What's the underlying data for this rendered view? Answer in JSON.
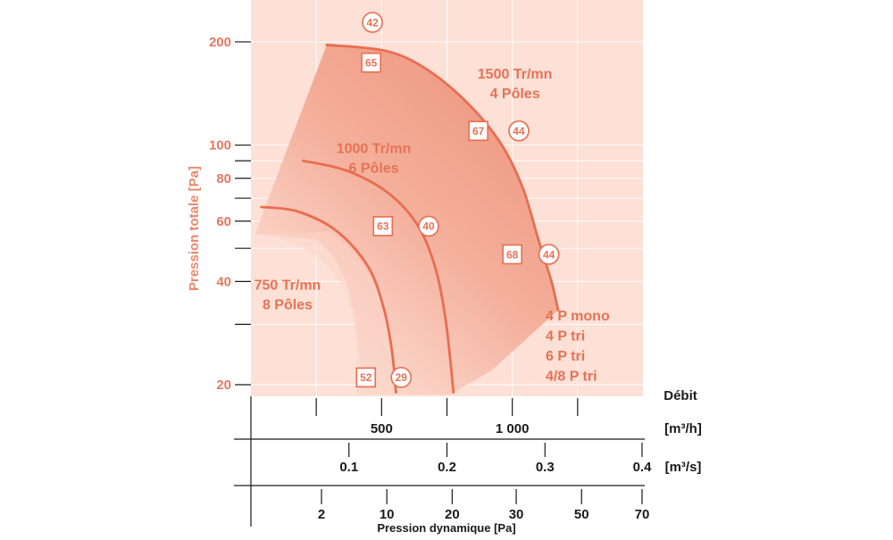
{
  "chart_data": {
    "type": "line",
    "ylabel": "Pression totale [Pa]",
    "xlabel": "Pression dynamique [Pa]",
    "y_scale": "log",
    "ylim": [
      18.5,
      265
    ],
    "y_ticks": [
      {
        "value": 20,
        "label": "20"
      },
      {
        "value": 30,
        "label": ""
      },
      {
        "value": 40,
        "label": "40"
      },
      {
        "value": 50,
        "label": ""
      },
      {
        "value": 60,
        "label": "60"
      },
      {
        "value": 70,
        "label": ""
      },
      {
        "value": 80,
        "label": "80"
      },
      {
        "value": 90,
        "label": ""
      },
      {
        "value": 100,
        "label": "100"
      },
      {
        "value": 200,
        "label": "200"
      }
    ],
    "x_axes": {
      "title": "Débit",
      "flow_m3h": {
        "unit": "[m³/h]",
        "xlim": [
          0,
          1500
        ],
        "ticks": [
          {
            "value": 250,
            "label": ""
          },
          {
            "value": 500,
            "label": "500"
          },
          {
            "value": 750,
            "label": ""
          },
          {
            "value": 1000,
            "label": "1 000"
          },
          {
            "value": 1250,
            "label": ""
          }
        ]
      },
      "flow_m3s": {
        "unit": "[m³/s]",
        "xlim": [
          0,
          0.4
        ],
        "ticks": [
          {
            "value": 0.1,
            "label": "0.1"
          },
          {
            "value": 0.2,
            "label": "0.2"
          },
          {
            "value": 0.3,
            "label": "0.3"
          },
          {
            "value": 0.4,
            "label": "0.4"
          }
        ]
      },
      "dynamic_pressure": {
        "ticks": [
          {
            "value": 2,
            "label": "2",
            "flow_m3h": 270
          },
          {
            "value": 10,
            "label": "10",
            "flow_m3h": 520
          },
          {
            "value": 20,
            "label": "20",
            "flow_m3h": 770
          },
          {
            "value": 30,
            "label": "30",
            "flow_m3h": 1015
          },
          {
            "value": 50,
            "label": "50",
            "flow_m3h": 1265
          },
          {
            "value": 70,
            "label": "70",
            "flow_m3h": 1500
          }
        ]
      }
    },
    "series": [
      {
        "name": "1500 Tr/mn\n4 Pôles",
        "label_lines": [
          "1500 Tr/mn",
          "4 Pôles"
        ],
        "points": [
          [
            290,
            196
          ],
          [
            520,
            188
          ],
          [
            680,
            165
          ],
          [
            840,
            130
          ],
          [
            960,
            100
          ],
          [
            1040,
            75
          ],
          [
            1100,
            53
          ],
          [
            1150,
            40
          ],
          [
            1175,
            33
          ]
        ]
      },
      {
        "name": "1000 Tr/mn\n6 Pôles",
        "label_lines": [
          "1000 Tr/mn",
          "6 Pôles"
        ],
        "points": [
          [
            200,
            90
          ],
          [
            370,
            84
          ],
          [
            530,
            72
          ],
          [
            640,
            58
          ],
          [
            705,
            44
          ],
          [
            745,
            31
          ],
          [
            775,
            19
          ]
        ]
      },
      {
        "name": "750 Tr/mn\n8 Pôles",
        "label_lines": [
          "750 Tr/mn",
          "8 Pôles"
        ],
        "points": [
          [
            40,
            66
          ],
          [
            180,
            64
          ],
          [
            330,
            56
          ],
          [
            450,
            44
          ],
          [
            510,
            33
          ],
          [
            540,
            25
          ],
          [
            555,
            19
          ]
        ]
      }
    ],
    "markers": [
      {
        "shape": "circle",
        "label": "42",
        "x": 465,
        "y": 228
      },
      {
        "shape": "square",
        "label": "65",
        "x": 460,
        "y": 174
      },
      {
        "shape": "square",
        "label": "67",
        "x": 870,
        "y": 110
      },
      {
        "shape": "circle",
        "label": "44",
        "x": 1025,
        "y": 110
      },
      {
        "shape": "square",
        "label": "63",
        "x": 505,
        "y": 58
      },
      {
        "shape": "circle",
        "label": "40",
        "x": 680,
        "y": 58
      },
      {
        "shape": "square",
        "label": "68",
        "x": 1000,
        "y": 48
      },
      {
        "shape": "circle",
        "label": "44",
        "x": 1140,
        "y": 48
      },
      {
        "shape": "square",
        "label": "52",
        "x": 440,
        "y": 21
      },
      {
        "shape": "circle",
        "label": "29",
        "x": 575,
        "y": 21
      }
    ],
    "motor_types": [
      "4 P mono",
      "4 P tri",
      "6 P tri",
      "4/8 P tri"
    ],
    "colors": {
      "plot_bg": "#fde0d6",
      "region_dark": "#f19e86",
      "region_light": "#fbd6c9",
      "curve": "#e96d50",
      "grid": "#ffffff",
      "text_accent": "#e67256",
      "axis": "#1a1a1a"
    }
  }
}
